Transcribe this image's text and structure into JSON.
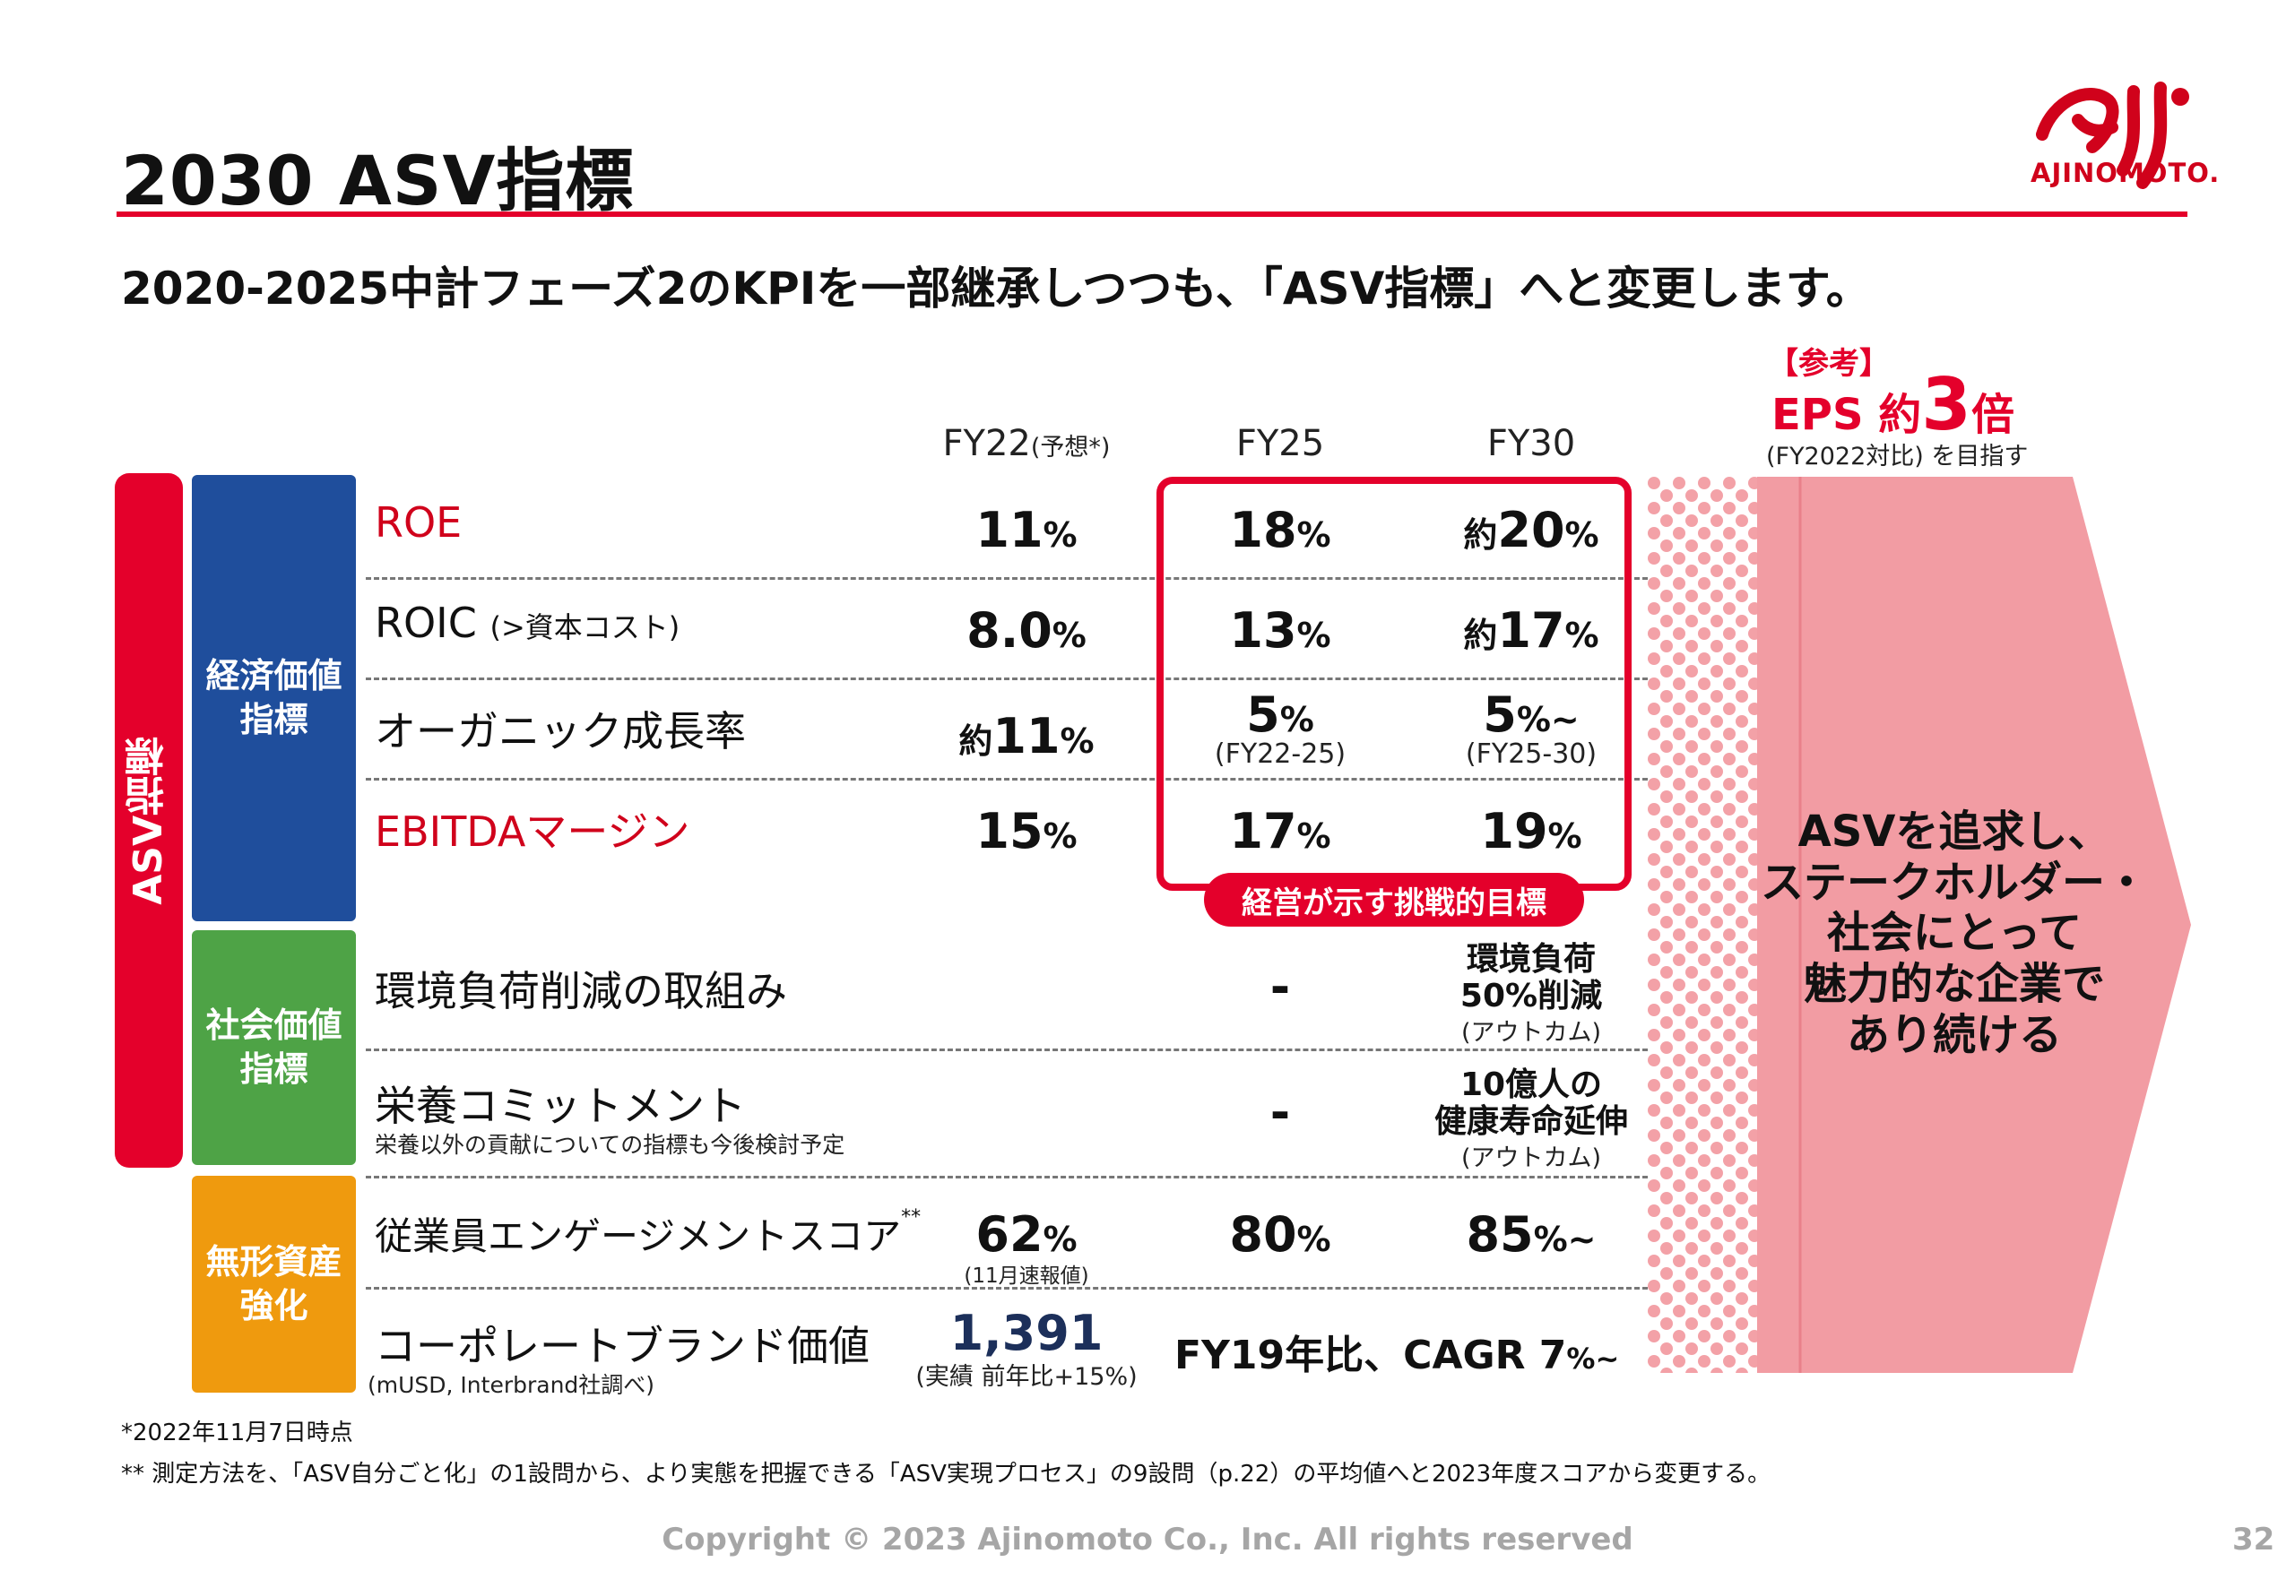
{
  "header": {
    "title": "2030 ASV指標",
    "subtitle": "2020-2025中計フェーズ2のKPIを一部継承しつつも、「ASV指標」へと変更します。",
    "logo_text": "AJINOMOTO."
  },
  "columns": {
    "fy22": "FY22",
    "fy22_note": "(予想*)",
    "fy25": "FY25",
    "fy30": "FY30"
  },
  "eps": {
    "reference": "【参考】",
    "prefix": "EPS 約",
    "multiplier": "3",
    "suffix": "倍",
    "note": "(FY2022対比) を目指す"
  },
  "asv_label": "ASV指標",
  "categories": {
    "economic": "経済価値\n指標",
    "social": "社会価値\n指標",
    "intangible": "無形資産\n強化"
  },
  "metrics": {
    "roe": {
      "name": "ROE",
      "fy22": "11",
      "fy25": "18",
      "fy30_pre": "約",
      "fy30": "20",
      "pct": "%"
    },
    "roic": {
      "name": "ROIC",
      "name_sub": "(>資本コスト)",
      "fy22": "8.0",
      "fy25": "13",
      "fy30_pre": "約",
      "fy30": "17",
      "pct": "%"
    },
    "organic": {
      "name": "オーガニック成長率",
      "fy22_pre": "約",
      "fy22": "11",
      "fy25": "5",
      "fy25_sub": "(FY22-25)",
      "fy30": "5",
      "fy30_suffix": "%~",
      "fy30_sub": "(FY25-30)",
      "pct": "%"
    },
    "ebitda": {
      "name": "EBITDAマージン",
      "fy22": "15",
      "fy25": "17",
      "fy30": "19",
      "pct": "%"
    },
    "environment": {
      "name": "環境負荷削減の取組み",
      "fy25": "-",
      "fy30": "環境負荷\n50%削減",
      "fy30_sub": "(アウトカム)"
    },
    "nutrition": {
      "name": "栄養コミットメント",
      "note": "栄養以外の貢献についての指標も今後検討予定",
      "fy25": "-",
      "fy30": "10億人の\n健康寿命延伸",
      "fy30_sub": "(アウトカム)"
    },
    "engagement": {
      "name": "従業員エンゲージメントスコア",
      "name_mark": "**",
      "fy22": "62",
      "fy22_sub": "(11月速報値)",
      "fy25": "80",
      "fy30": "85",
      "fy30_suffix": "%~",
      "pct": "%"
    },
    "brand": {
      "name": "コーポレートブランド価値",
      "note": "(mUSD, Interbrand社調べ)",
      "fy22": "1,391",
      "fy22_sub": "(実績 前年比+15%)",
      "fy25_30_main": "FY19年比、CAGR 7",
      "fy25_30_suffix": "%~"
    }
  },
  "challenge_label": "経営が示す挑戦的目標",
  "arrow_message": "ASVを追求し、\nステークホルダー・\n社会にとって\n魅力的な企業で\nあり続ける",
  "footnotes": {
    "note1": "*2022年11月7日時点",
    "note2": "** 測定方法を、「ASV自分ごと化」の1設問から、より実態を把握できる「ASV実現プロセス」の9設問（p.22）の平均値へと2023年度スコアから変更する。"
  },
  "footer": {
    "copyright": "Copyright © 2023 Ajinomoto Co., Inc. All rights reserved",
    "page": "32"
  },
  "colors": {
    "accent": "#e4002b",
    "economic": "#1f4e9c",
    "social": "#4ea346",
    "intangible": "#ef9a0e",
    "arrow": "#f29ca3"
  }
}
